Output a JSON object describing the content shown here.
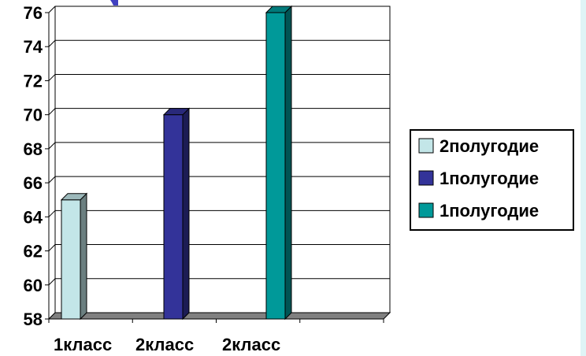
{
  "chart_data": {
    "type": "bar",
    "categories": [
      "1класс",
      "2класс",
      "2класс"
    ],
    "series": [
      {
        "name": "2полугодие",
        "color": "#c3e6e8",
        "values": [
          65,
          null,
          null
        ]
      },
      {
        "name": "1полугодие",
        "color": "#333399",
        "values": [
          null,
          70,
          null
        ]
      },
      {
        "name": "1полугодие",
        "color": "#009999",
        "values": [
          null,
          null,
          76
        ]
      }
    ],
    "ylim": [
      58,
      76
    ],
    "yticks": [
      "58",
      "60",
      "62",
      "64",
      "66",
      "68",
      "70",
      "72",
      "74",
      "76"
    ],
    "grid": true,
    "legend_position": "right",
    "title": "",
    "xlabel": "",
    "ylabel": ""
  }
}
